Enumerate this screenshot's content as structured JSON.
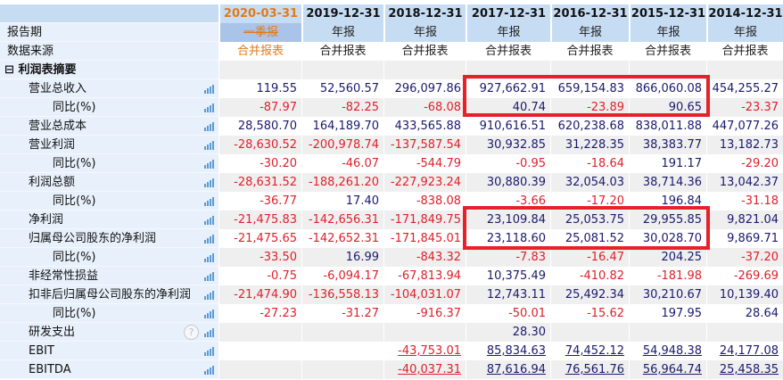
{
  "columns": [
    {
      "date": "2020-03-31",
      "period": "一季报",
      "source": "合并报表",
      "current": true
    },
    {
      "date": "2019-12-31",
      "period": "年报",
      "source": "合并报表"
    },
    {
      "date": "2018-12-31",
      "period": "年报",
      "source": "合并报表"
    },
    {
      "date": "2017-12-31",
      "period": "年报",
      "source": "合并报表"
    },
    {
      "date": "2016-12-31",
      "period": "年报",
      "source": "合并报表"
    },
    {
      "date": "2015-12-31",
      "period": "年报",
      "source": "合并报表"
    },
    {
      "date": "2014-12-31",
      "period": "年报",
      "source": "合并报表"
    }
  ],
  "header_labels": {
    "period": "报告期",
    "source": "数据来源"
  },
  "section": {
    "collapse_icon": "⊟",
    "title": "利润表摘要"
  },
  "rows": [
    {
      "label": "营业总收入",
      "level": 1,
      "values": [
        "119.55",
        "52,560.57",
        "296,097.86",
        "927,662.91",
        "659,154.83",
        "866,060.08",
        "454,255.27"
      ]
    },
    {
      "label": "同比(%)",
      "level": 2,
      "values": [
        "-87.97",
        "-82.25",
        "-68.08",
        "40.74",
        "-23.89",
        "90.65",
        "-23.37"
      ]
    },
    {
      "label": "营业总成本",
      "level": 1,
      "values": [
        "28,580.70",
        "164,189.70",
        "433,565.88",
        "910,616.51",
        "620,238.68",
        "838,011.88",
        "447,077.26"
      ]
    },
    {
      "label": "营业利润",
      "level": 1,
      "values": [
        "-28,630.52",
        "-200,978.74",
        "-137,587.54",
        "30,932.85",
        "31,228.35",
        "38,383.77",
        "13,182.73"
      ]
    },
    {
      "label": "同比(%)",
      "level": 2,
      "values": [
        "-30.20",
        "-46.07",
        "-544.79",
        "-0.95",
        "-18.64",
        "191.17",
        "-29.20"
      ]
    },
    {
      "label": "利润总额",
      "level": 1,
      "values": [
        "-28,631.52",
        "-188,261.20",
        "-227,923.24",
        "30,880.39",
        "32,054.03",
        "38,714.36",
        "13,042.37"
      ]
    },
    {
      "label": "同比(%)",
      "level": 2,
      "values": [
        "-36.77",
        "17.40",
        "-838.08",
        "-3.66",
        "-17.20",
        "196.84",
        "-31.18"
      ]
    },
    {
      "label": "净利润",
      "level": 1,
      "values": [
        "-21,475.83",
        "-142,656.31",
        "-171,849.75",
        "23,109.84",
        "25,053.75",
        "29,955.85",
        "9,821.04"
      ]
    },
    {
      "label": "归属母公司股东的净利润",
      "level": 1,
      "values": [
        "-21,475.65",
        "-142,652.31",
        "-171,845.01",
        "23,118.60",
        "25,081.52",
        "30,028.70",
        "9,869.71"
      ]
    },
    {
      "label": "同比(%)",
      "level": 2,
      "values": [
        "-33.50",
        "16.99",
        "-843.32",
        "-7.83",
        "-16.47",
        "204.25",
        "-37.20"
      ]
    },
    {
      "label": "非经常性损益",
      "level": 1,
      "values": [
        "-0.75",
        "-6,094.17",
        "-67,813.94",
        "10,375.49",
        "-410.82",
        "-181.98",
        "-269.69"
      ]
    },
    {
      "label": "扣非后归属母公司股东的净利润",
      "level": 1,
      "values": [
        "-21,474.90",
        "-136,558.13",
        "-104,031.07",
        "12,743.11",
        "25,492.34",
        "30,210.67",
        "10,139.40"
      ]
    },
    {
      "label": "同比(%)",
      "level": 2,
      "values": [
        "-27.23",
        "-31.27",
        "-916.37",
        "-50.01",
        "-15.62",
        "197.95",
        "28.64"
      ]
    },
    {
      "label": "研发支出",
      "level": 1,
      "help": "?",
      "values": [
        "",
        "",
        "",
        "28.30",
        "",
        "",
        ""
      ]
    },
    {
      "label": "EBIT",
      "level": 1,
      "linked": true,
      "values": [
        "",
        "",
        "-43,753.01",
        "85,834.63",
        "74,452.12",
        "54,948.38",
        "24,177.08"
      ]
    },
    {
      "label": "EBITDA",
      "level": 1,
      "linked": true,
      "values": [
        "",
        "",
        "-40,037.31",
        "87,616.94",
        "76,561.76",
        "56,964.74",
        "25,458.35"
      ]
    }
  ],
  "highlights": [
    {
      "rows": [
        "营业总收入",
        "同比(%)"
      ],
      "columns": [
        "2017-12-31",
        "2016-12-31",
        "2015-12-31"
      ],
      "color": "#e8202a"
    },
    {
      "rows": [
        "净利润",
        "归属母公司股东的净利润"
      ],
      "columns": [
        "2017-12-31",
        "2016-12-31",
        "2015-12-31"
      ],
      "color": "#e8202a"
    }
  ],
  "colors": {
    "header_bg": "#c6dcf3",
    "current_period": "#e07b1a",
    "positive": "#1a1a6e",
    "negative": "#e0202a",
    "highlight_border": "#e8202a"
  }
}
